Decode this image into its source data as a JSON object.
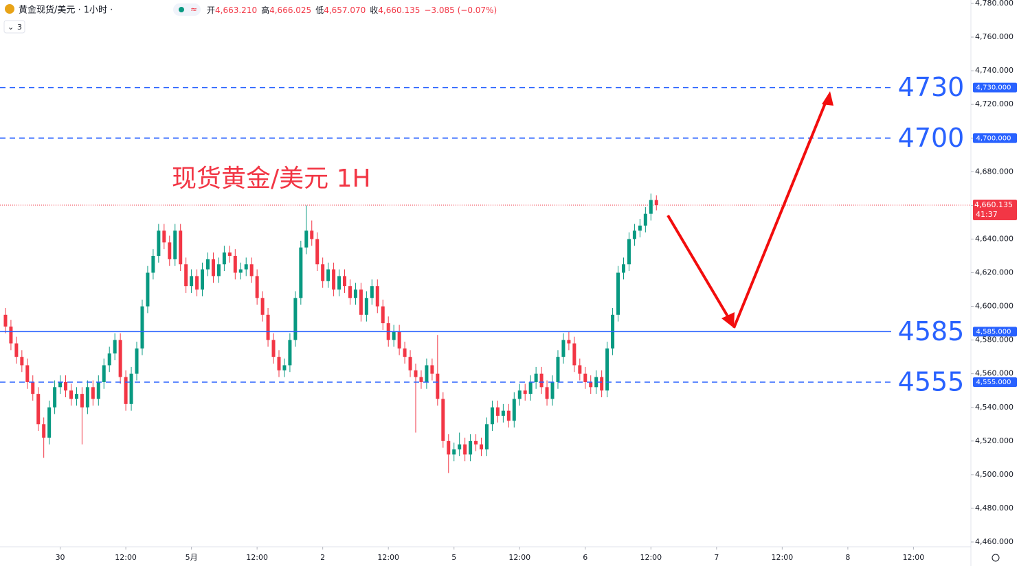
{
  "header": {
    "symbol": "黄金现货/美元 · 1小时 ·",
    "badge": "3",
    "ohlc": [
      {
        "key": "开",
        "value": "4,663.210"
      },
      {
        "key": "高",
        "value": "4,666.025"
      },
      {
        "key": "低",
        "value": "4,657.070"
      },
      {
        "key": "收",
        "value": "4,660.135"
      }
    ],
    "change": "−3.085 (−0.07%)"
  },
  "chart_data": {
    "type": "candlestick",
    "annotation": "现货黄金/美元 1H",
    "up_color": "#089981",
    "down_color": "#f23645",
    "xlim": [
      -11,
      166.5
    ],
    "ylim": [
      4460,
      4780
    ],
    "xticks": [
      {
        "value": 0,
        "label": "30"
      },
      {
        "value": 12,
        "label": "12:00"
      },
      {
        "value": 24,
        "label": "5月"
      },
      {
        "value": 36,
        "label": "12:00"
      },
      {
        "value": 48,
        "label": "2"
      },
      {
        "value": 60,
        "label": "12:00"
      },
      {
        "value": 72,
        "label": "5"
      },
      {
        "value": 84,
        "label": "12:00"
      },
      {
        "value": 96,
        "label": "6"
      },
      {
        "value": 108,
        "label": "12:00"
      },
      {
        "value": 120,
        "label": "7"
      },
      {
        "value": 132,
        "label": "12:00"
      },
      {
        "value": 144,
        "label": "8"
      },
      {
        "value": 156,
        "label": "12:00"
      }
    ],
    "yticks": [
      {
        "value": 4460,
        "label": "4,460.000"
      },
      {
        "value": 4480,
        "label": "4,480.000"
      },
      {
        "value": 4500,
        "label": "4,500.000"
      },
      {
        "value": 4520,
        "label": "4,520.000"
      },
      {
        "value": 4540,
        "label": "4,540.000"
      },
      {
        "value": 4560,
        "label": "4,560.000"
      },
      {
        "value": 4580,
        "label": "4,580.000"
      },
      {
        "value": 4600,
        "label": "4,600.000"
      },
      {
        "value": 4620,
        "label": "4,620.000"
      },
      {
        "value": 4640,
        "label": "4,640.000"
      },
      {
        "value": 4660,
        "label": "4,660.000"
      },
      {
        "value": 4680,
        "label": "4,680.000"
      },
      {
        "value": 4700,
        "label": "4,700.000"
      },
      {
        "value": 4720,
        "label": "4,720.000"
      },
      {
        "value": 4740,
        "label": "4,740.000"
      },
      {
        "value": 4760,
        "label": "4,760.000"
      },
      {
        "value": 4780,
        "label": "4,780.000"
      }
    ],
    "levels": [
      {
        "value": 4730,
        "label": "4730",
        "axis_label": "4,730.000",
        "style": "dashed"
      },
      {
        "value": 4700,
        "label": "4700",
        "axis_label": "4,700.000",
        "style": "dashed"
      },
      {
        "value": 4585,
        "label": "4585",
        "axis_label": "4,585.000",
        "style": "solid"
      },
      {
        "value": 4555,
        "label": "4555",
        "axis_label": "4,555.000",
        "style": "dashed"
      }
    ],
    "level_color": "#2962ff",
    "last_price": {
      "value": 4660.135,
      "label": "4,660.135",
      "countdown": "41:37"
    },
    "x": [
      -10,
      -9,
      -8,
      -7,
      -6,
      -5,
      -4,
      -3,
      -2,
      -1,
      0,
      1,
      2,
      3,
      4,
      5,
      6,
      7,
      8,
      9,
      10,
      11,
      12,
      13,
      14,
      15,
      16,
      17,
      18,
      19,
      20,
      21,
      22,
      23,
      24,
      25,
      26,
      27,
      28,
      29,
      30,
      31,
      32,
      33,
      34,
      35,
      36,
      37,
      38,
      39,
      40,
      41,
      42,
      43,
      44,
      45,
      46,
      47,
      48,
      49,
      50,
      51,
      52,
      53,
      54,
      55,
      56,
      57,
      58,
      59,
      60,
      61,
      62,
      63,
      64,
      65,
      66,
      67,
      68,
      69,
      70,
      71,
      72,
      73,
      74,
      75,
      76,
      77,
      78,
      79,
      80,
      81,
      82,
      83,
      84,
      85,
      86,
      87,
      88,
      89,
      90,
      91,
      92,
      93,
      94,
      95,
      96,
      97,
      98,
      99,
      100,
      101,
      102,
      103,
      104,
      105,
      106,
      107,
      108,
      109
    ],
    "open": [
      4595,
      4588,
      4578,
      4570,
      4565,
      4555,
      4548,
      4530,
      4522,
      4540,
      4552,
      4555,
      4550,
      4545,
      4548,
      4540,
      4552,
      4545,
      4555,
      4565,
      4572,
      4580,
      4558,
      4542,
      4560,
      4575,
      4600,
      4620,
      4630,
      4645,
      4638,
      4628,
      4645,
      4625,
      4612,
      4618,
      4610,
      4622,
      4628,
      4618,
      4625,
      4632,
      4630,
      4620,
      4622,
      4625,
      4618,
      4605,
      4595,
      4580,
      4570,
      4562,
      4565,
      4580,
      4605,
      4635,
      4645,
      4640,
      4625,
      4615,
      4622,
      4610,
      4618,
      4612,
      4605,
      4610,
      4595,
      4605,
      4612,
      4600,
      4590,
      4580,
      4585,
      4575,
      4570,
      4562,
      4558,
      4555,
      4565,
      4560,
      4545,
      4520,
      4512,
      4515,
      4518,
      4512,
      4520,
      4518,
      4515,
      4530,
      4540,
      4535,
      4538,
      4532,
      4545,
      4550,
      4548,
      4555,
      4560,
      4552,
      4545,
      4555,
      4570,
      4580,
      4578,
      4565,
      4560,
      4555,
      4552,
      4558,
      4550,
      4575,
      4595,
      4620,
      4625,
      4640,
      4645,
      4648,
      4655,
      4663.21
    ],
    "high": [
      4599,
      4592,
      4582,
      4574,
      4569,
      4559,
      4552,
      4534,
      4544,
      4556,
      4559,
      4559,
      4554,
      4552,
      4552,
      4556,
      4556,
      4559,
      4569,
      4576,
      4584,
      4584,
      4562,
      4564,
      4579,
      4604,
      4624,
      4634,
      4649,
      4649,
      4642,
      4649,
      4649,
      4629,
      4622,
      4622,
      4626,
      4632,
      4632,
      4629,
      4636,
      4636,
      4634,
      4626,
      4629,
      4629,
      4622,
      4609,
      4599,
      4584,
      4574,
      4569,
      4584,
      4609,
      4639,
      4660,
      4651,
      4644,
      4629,
      4626,
      4626,
      4622,
      4622,
      4616,
      4614,
      4614,
      4609,
      4616,
      4616,
      4604,
      4594,
      4589,
      4589,
      4579,
      4574,
      4566,
      4562,
      4569,
      4569,
      4583,
      4549,
      4524,
      4519,
      4525,
      4522,
      4524,
      4524,
      4522,
      4534,
      4544,
      4544,
      4542,
      4542,
      4549,
      4554,
      4554,
      4559,
      4564,
      4564,
      4556,
      4559,
      4574,
      4584,
      4585,
      4582,
      4569,
      4564,
      4559,
      4562,
      4562,
      4579,
      4599,
      4624,
      4629,
      4644,
      4649,
      4652,
      4659,
      4667,
      4666.025
    ],
    "low": [
      4584,
      4574,
      4566,
      4561,
      4551,
      4544,
      4526,
      4510,
      4518,
      4536,
      4548,
      4546,
      4541,
      4541,
      4518,
      4536,
      4541,
      4541,
      4551,
      4561,
      4568,
      4554,
      4538,
      4538,
      4556,
      4571,
      4596,
      4616,
      4626,
      4634,
      4624,
      4624,
      4621,
      4608,
      4608,
      4606,
      4606,
      4618,
      4614,
      4614,
      4621,
      4626,
      4616,
      4616,
      4618,
      4614,
      4601,
      4591,
      4576,
      4566,
      4558,
      4558,
      4561,
      4576,
      4601,
      4631,
      4636,
      4621,
      4611,
      4611,
      4606,
      4606,
      4608,
      4601,
      4601,
      4591,
      4591,
      4601,
      4596,
      4586,
      4576,
      4576,
      4571,
      4566,
      4558,
      4525,
      4551,
      4551,
      4556,
      4541,
      4516,
      4501,
      4508,
      4511,
      4508,
      4508,
      4514,
      4511,
      4511,
      4526,
      4531,
      4531,
      4528,
      4528,
      4541,
      4544,
      4544,
      4551,
      4548,
      4541,
      4541,
      4551,
      4566,
      4574,
      4561,
      4556,
      4551,
      4548,
      4548,
      4546,
      4546,
      4571,
      4591,
      4616,
      4621,
      4636,
      4641,
      4644,
      4651,
      4657.07
    ],
    "close": [
      4588,
      4578,
      4570,
      4565,
      4555,
      4548,
      4530,
      4522,
      4540,
      4552,
      4555,
      4550,
      4545,
      4548,
      4540,
      4552,
      4545,
      4555,
      4565,
      4572,
      4580,
      4558,
      4542,
      4560,
      4575,
      4600,
      4620,
      4630,
      4645,
      4638,
      4628,
      4645,
      4625,
      4612,
      4618,
      4610,
      4622,
      4628,
      4618,
      4625,
      4632,
      4630,
      4620,
      4622,
      4625,
      4618,
      4605,
      4595,
      4580,
      4570,
      4562,
      4565,
      4580,
      4605,
      4635,
      4645,
      4640,
      4625,
      4615,
      4622,
      4610,
      4618,
      4612,
      4605,
      4610,
      4595,
      4605,
      4612,
      4600,
      4590,
      4580,
      4585,
      4575,
      4570,
      4562,
      4558,
      4555,
      4565,
      4560,
      4545,
      4520,
      4512,
      4515,
      4518,
      4512,
      4520,
      4518,
      4515,
      4530,
      4540,
      4535,
      4538,
      4532,
      4545,
      4550,
      4548,
      4555,
      4560,
      4552,
      4545,
      4555,
      4570,
      4580,
      4578,
      4565,
      4560,
      4555,
      4552,
      4558,
      4550,
      4575,
      4595,
      4620,
      4625,
      4640,
      4645,
      4648,
      4655,
      4663.21,
      4660.135
    ]
  }
}
